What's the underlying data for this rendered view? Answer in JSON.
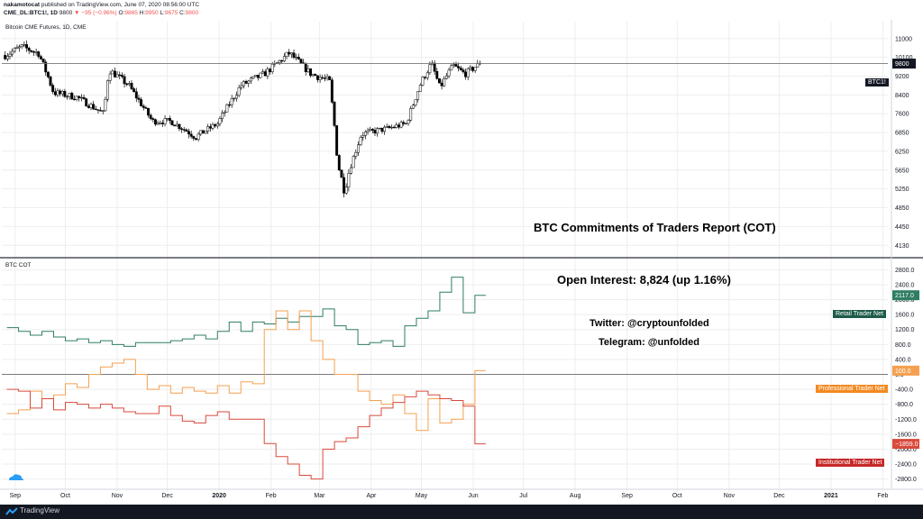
{
  "header": {
    "author": "nakamotocat",
    "published_text": "published on TradingView.com, June 07, 2020 08:56:00 UTC",
    "symbol": "CME_DL:BTC1!, 1D",
    "last": "9800",
    "change": "▼ −95 (−0.96%)",
    "o_label": "O:",
    "o_val": "9865",
    "h_label": "H:",
    "h_val": "9950",
    "l_label": "L:",
    "l_val": "9675",
    "c_label": "C:",
    "c_val": "9800"
  },
  "footer": {
    "brand": "TradingView"
  },
  "panes": {
    "price_title": "Bitcoin CME Futures, 1D, CME",
    "cot_title": "BTC COT"
  },
  "annotations": {
    "title": "BTC Commitments of Traders Report (COT)",
    "open_interest": "Open Interest: 8,824  (up 1.16%)",
    "twitter": "Twitter: @cryptounfolded",
    "telegram": "Telegram: @unfolded"
  },
  "tags": {
    "price_symbol": "BTC1!",
    "price_value": "9800",
    "retail": "Retail Trader Net",
    "retail_value": "2117.0",
    "professional": "Professional Trader Net",
    "professional_value": "100.0",
    "institutional": "Institutional Trader Net",
    "institutional_value": "−1859.0"
  },
  "colors": {
    "retail": "#2f7d63",
    "professional": "#f5a050",
    "institutional": "#d84a3c",
    "candle_up": "#ffffff",
    "candle_down": "#000000",
    "grid": "#eeeeee",
    "text": "#131722"
  },
  "chart_data": [
    {
      "type": "candlestick",
      "title": "Bitcoin CME Futures, 1D, CME",
      "yaxis_ticks": [
        11000,
        10100,
        9200,
        8400,
        7600,
        6850,
        6250,
        5650,
        5250,
        4850,
        4450,
        4130
      ],
      "ylim": [
        4000,
        11400
      ],
      "xaxis_ticks": [
        "Sep",
        "Oct",
        "Nov",
        "Dec",
        "2020",
        "Feb",
        "Mar",
        "Apr",
        "May",
        "Jun",
        "Jul",
        "Aug",
        "Sep",
        "Oct",
        "Nov",
        "Dec",
        "2021",
        "Feb"
      ],
      "close_path": [
        [
          "2019-08-26",
          10200
        ],
        [
          "2019-09-05",
          10600
        ],
        [
          "2019-09-15",
          10300
        ],
        [
          "2019-09-24",
          8500
        ],
        [
          "2019-10-08",
          8300
        ],
        [
          "2019-10-24",
          7600
        ],
        [
          "2019-10-27",
          9500
        ],
        [
          "2019-11-08",
          8800
        ],
        [
          "2019-11-22",
          7300
        ],
        [
          "2019-12-03",
          7300
        ],
        [
          "2019-12-18",
          6700
        ],
        [
          "2019-12-31",
          7200
        ],
        [
          "2020-01-14",
          8800
        ],
        [
          "2020-01-28",
          9300
        ],
        [
          "2020-02-12",
          10300
        ],
        [
          "2020-02-25",
          9300
        ],
        [
          "2020-03-07",
          9000
        ],
        [
          "2020-03-12",
          5800
        ],
        [
          "2020-03-16",
          5200
        ],
        [
          "2020-03-26",
          6800
        ],
        [
          "2020-04-10",
          7000
        ],
        [
          "2020-04-22",
          7200
        ],
        [
          "2020-04-30",
          8800
        ],
        [
          "2020-05-07",
          9800
        ],
        [
          "2020-05-12",
          8700
        ],
        [
          "2020-05-20",
          9700
        ],
        [
          "2020-05-27",
          9300
        ],
        [
          "2020-06-05",
          9800
        ]
      ],
      "last_price": 9800,
      "last_label": "BTC1!",
      "candle_count": 200
    },
    {
      "type": "line",
      "title": "BTC COT",
      "yaxis_ticks": [
        2800,
        2400,
        2000,
        1600,
        1200,
        800,
        400,
        0,
        -400,
        -800,
        -1200,
        -1600,
        -2000,
        -2400,
        -2800
      ],
      "ylim": [
        -3050,
        3050
      ],
      "x": [
        "2019-08-27",
        "2019-09-03",
        "2019-09-10",
        "2019-09-17",
        "2019-09-24",
        "2019-10-01",
        "2019-10-08",
        "2019-10-15",
        "2019-10-22",
        "2019-10-29",
        "2019-11-05",
        "2019-11-12",
        "2019-11-19",
        "2019-11-26",
        "2019-12-03",
        "2019-12-10",
        "2019-12-17",
        "2019-12-24",
        "2019-12-31",
        "2020-01-07",
        "2020-01-14",
        "2020-01-21",
        "2020-01-28",
        "2020-02-04",
        "2020-02-11",
        "2020-02-18",
        "2020-02-25",
        "2020-03-03",
        "2020-03-10",
        "2020-03-17",
        "2020-03-24",
        "2020-03-31",
        "2020-04-07",
        "2020-04-14",
        "2020-04-21",
        "2020-04-28",
        "2020-05-05",
        "2020-05-12",
        "2020-05-19",
        "2020-05-26",
        "2020-06-02"
      ],
      "series": [
        {
          "name": "Retail Trader Net",
          "values": [
            1250,
            1150,
            1050,
            1150,
            1000,
            900,
            950,
            850,
            900,
            800,
            750,
            850,
            850,
            850,
            900,
            950,
            1050,
            950,
            1150,
            1400,
            1150,
            1400,
            1350,
            1500,
            1400,
            1550,
            1550,
            1750,
            1300,
            1200,
            800,
            850,
            900,
            750,
            1300,
            1500,
            1700,
            2200,
            2600,
            1650,
            2117
          ]
        },
        {
          "name": "Professional Trader Net",
          "values": [
            -1050,
            -950,
            -450,
            -650,
            -550,
            -250,
            -350,
            0,
            200,
            300,
            400,
            0,
            -400,
            -300,
            -500,
            -350,
            -450,
            -500,
            -300,
            -500,
            -200,
            -250,
            1200,
            1700,
            1200,
            1700,
            900,
            400,
            0,
            0,
            -450,
            -700,
            -800,
            -550,
            -1050,
            -1500,
            -650,
            -1300,
            -1200,
            -800,
            100
          ]
        },
        {
          "name": "Institutional Trader Net",
          "values": [
            -400,
            -450,
            -900,
            -650,
            -950,
            -750,
            -800,
            -900,
            -800,
            -900,
            -1000,
            -1050,
            -1050,
            -850,
            -1100,
            -1250,
            -1300,
            -1100,
            -1000,
            -1200,
            -1200,
            -1200,
            -1850,
            -2200,
            -2400,
            -2700,
            -2800,
            -2000,
            -1800,
            -1700,
            -1400,
            -1100,
            -900,
            -750,
            -600,
            -450,
            -550,
            -650,
            -700,
            -850,
            -1859
          ]
        }
      ]
    }
  ]
}
